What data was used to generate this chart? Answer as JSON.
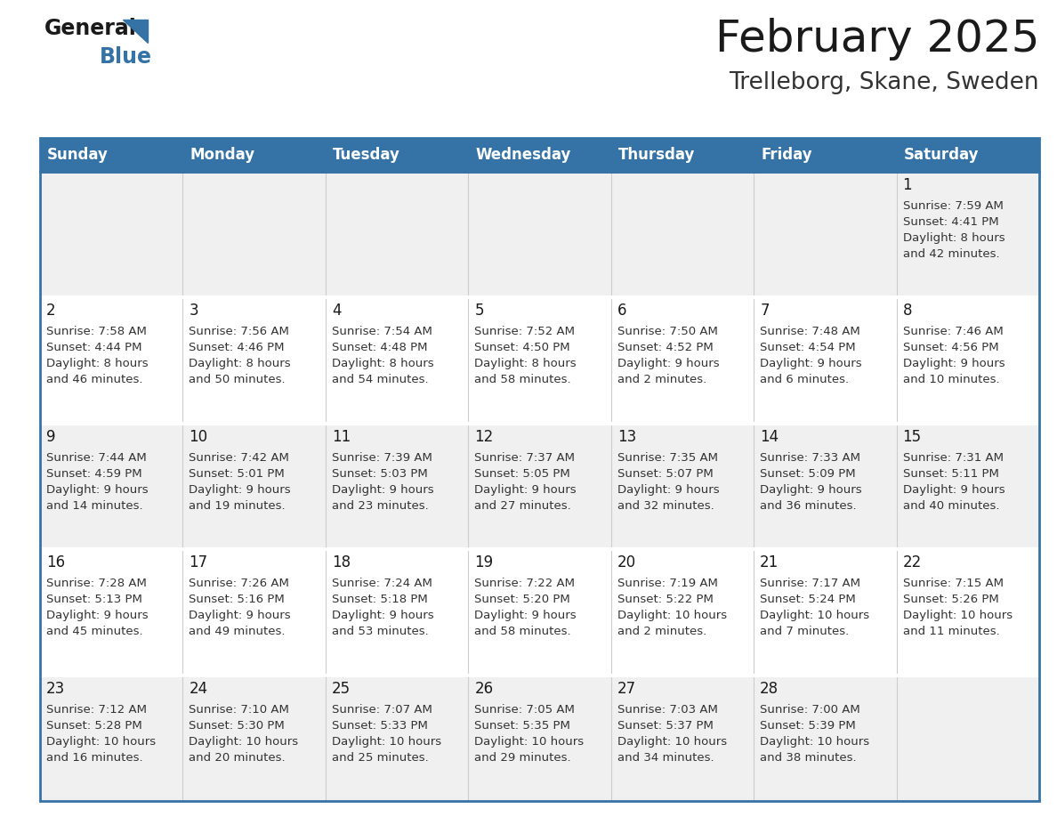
{
  "title": "February 2025",
  "subtitle": "Trelleborg, Skane, Sweden",
  "days_of_week": [
    "Sunday",
    "Monday",
    "Tuesday",
    "Wednesday",
    "Thursday",
    "Friday",
    "Saturday"
  ],
  "header_bg": "#3572a5",
  "header_text": "#ffffff",
  "cell_bg_odd": "#f0f0f0",
  "cell_bg_even": "#ffffff",
  "border_color": "#3572a5",
  "title_color": "#1a1a1a",
  "subtitle_color": "#333333",
  "cell_text_color": "#333333",
  "day_num_color": "#1a1a1a",
  "logo_text_color": "#1a1a1a",
  "logo_blue_color": "#3572a5",
  "calendar_data": [
    [
      null,
      null,
      null,
      null,
      null,
      null,
      {
        "day": 1,
        "sunrise": "7:59 AM",
        "sunset": "4:41 PM",
        "daylight": "8 hours",
        "daylight2": "and 42 minutes."
      }
    ],
    [
      {
        "day": 2,
        "sunrise": "7:58 AM",
        "sunset": "4:44 PM",
        "daylight": "8 hours",
        "daylight2": "and 46 minutes."
      },
      {
        "day": 3,
        "sunrise": "7:56 AM",
        "sunset": "4:46 PM",
        "daylight": "8 hours",
        "daylight2": "and 50 minutes."
      },
      {
        "day": 4,
        "sunrise": "7:54 AM",
        "sunset": "4:48 PM",
        "daylight": "8 hours",
        "daylight2": "and 54 minutes."
      },
      {
        "day": 5,
        "sunrise": "7:52 AM",
        "sunset": "4:50 PM",
        "daylight": "8 hours",
        "daylight2": "and 58 minutes."
      },
      {
        "day": 6,
        "sunrise": "7:50 AM",
        "sunset": "4:52 PM",
        "daylight": "9 hours",
        "daylight2": "and 2 minutes."
      },
      {
        "day": 7,
        "sunrise": "7:48 AM",
        "sunset": "4:54 PM",
        "daylight": "9 hours",
        "daylight2": "and 6 minutes."
      },
      {
        "day": 8,
        "sunrise": "7:46 AM",
        "sunset": "4:56 PM",
        "daylight": "9 hours",
        "daylight2": "and 10 minutes."
      }
    ],
    [
      {
        "day": 9,
        "sunrise": "7:44 AM",
        "sunset": "4:59 PM",
        "daylight": "9 hours",
        "daylight2": "and 14 minutes."
      },
      {
        "day": 10,
        "sunrise": "7:42 AM",
        "sunset": "5:01 PM",
        "daylight": "9 hours",
        "daylight2": "and 19 minutes."
      },
      {
        "day": 11,
        "sunrise": "7:39 AM",
        "sunset": "5:03 PM",
        "daylight": "9 hours",
        "daylight2": "and 23 minutes."
      },
      {
        "day": 12,
        "sunrise": "7:37 AM",
        "sunset": "5:05 PM",
        "daylight": "9 hours",
        "daylight2": "and 27 minutes."
      },
      {
        "day": 13,
        "sunrise": "7:35 AM",
        "sunset": "5:07 PM",
        "daylight": "9 hours",
        "daylight2": "and 32 minutes."
      },
      {
        "day": 14,
        "sunrise": "7:33 AM",
        "sunset": "5:09 PM",
        "daylight": "9 hours",
        "daylight2": "and 36 minutes."
      },
      {
        "day": 15,
        "sunrise": "7:31 AM",
        "sunset": "5:11 PM",
        "daylight": "9 hours",
        "daylight2": "and 40 minutes."
      }
    ],
    [
      {
        "day": 16,
        "sunrise": "7:28 AM",
        "sunset": "5:13 PM",
        "daylight": "9 hours",
        "daylight2": "and 45 minutes."
      },
      {
        "day": 17,
        "sunrise": "7:26 AM",
        "sunset": "5:16 PM",
        "daylight": "9 hours",
        "daylight2": "and 49 minutes."
      },
      {
        "day": 18,
        "sunrise": "7:24 AM",
        "sunset": "5:18 PM",
        "daylight": "9 hours",
        "daylight2": "and 53 minutes."
      },
      {
        "day": 19,
        "sunrise": "7:22 AM",
        "sunset": "5:20 PM",
        "daylight": "9 hours",
        "daylight2": "and 58 minutes."
      },
      {
        "day": 20,
        "sunrise": "7:19 AM",
        "sunset": "5:22 PM",
        "daylight": "10 hours",
        "daylight2": "and 2 minutes."
      },
      {
        "day": 21,
        "sunrise": "7:17 AM",
        "sunset": "5:24 PM",
        "daylight": "10 hours",
        "daylight2": "and 7 minutes."
      },
      {
        "day": 22,
        "sunrise": "7:15 AM",
        "sunset": "5:26 PM",
        "daylight": "10 hours",
        "daylight2": "and 11 minutes."
      }
    ],
    [
      {
        "day": 23,
        "sunrise": "7:12 AM",
        "sunset": "5:28 PM",
        "daylight": "10 hours",
        "daylight2": "and 16 minutes."
      },
      {
        "day": 24,
        "sunrise": "7:10 AM",
        "sunset": "5:30 PM",
        "daylight": "10 hours",
        "daylight2": "and 20 minutes."
      },
      {
        "day": 25,
        "sunrise": "7:07 AM",
        "sunset": "5:33 PM",
        "daylight": "10 hours",
        "daylight2": "and 25 minutes."
      },
      {
        "day": 26,
        "sunrise": "7:05 AM",
        "sunset": "5:35 PM",
        "daylight": "10 hours",
        "daylight2": "and 29 minutes."
      },
      {
        "day": 27,
        "sunrise": "7:03 AM",
        "sunset": "5:37 PM",
        "daylight": "10 hours",
        "daylight2": "and 34 minutes."
      },
      {
        "day": 28,
        "sunrise": "7:00 AM",
        "sunset": "5:39 PM",
        "daylight": "10 hours",
        "daylight2": "and 38 minutes."
      },
      null
    ]
  ]
}
